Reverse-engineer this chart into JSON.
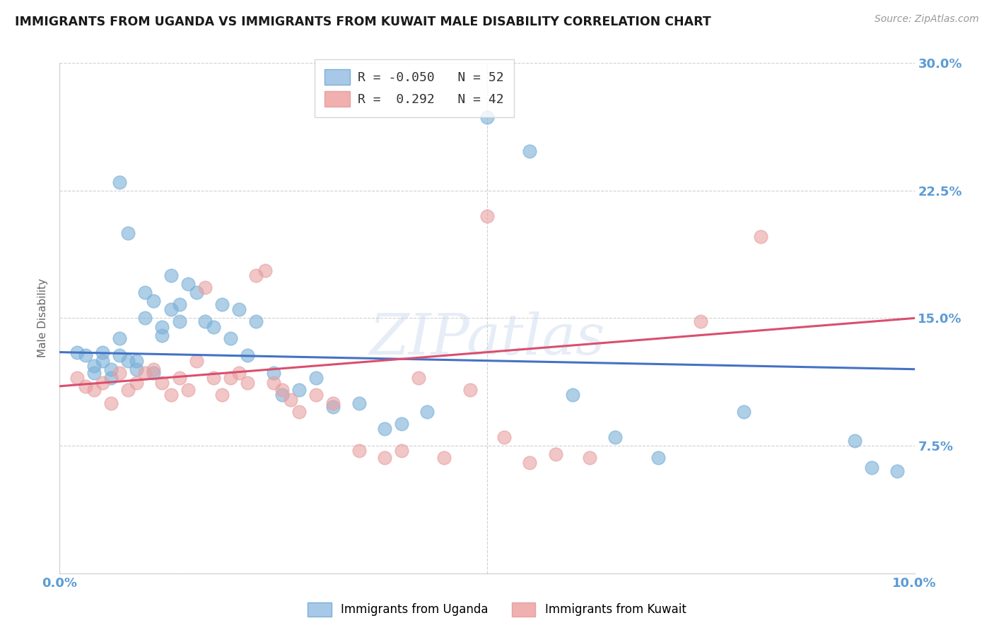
{
  "title": "IMMIGRANTS FROM UGANDA VS IMMIGRANTS FROM KUWAIT MALE DISABILITY CORRELATION CHART",
  "source": "Source: ZipAtlas.com",
  "ylabel_label": "Male Disability",
  "ylabel_ticks": [
    0.0,
    0.075,
    0.15,
    0.225,
    0.3
  ],
  "ylabel_tick_labels": [
    "",
    "7.5%",
    "15.0%",
    "22.5%",
    "30.0%"
  ],
  "xlim": [
    0.0,
    0.1
  ],
  "ylim": [
    0.0,
    0.3
  ],
  "series_uganda": {
    "color": "#7ab0d8",
    "x": [
      0.002,
      0.003,
      0.004,
      0.004,
      0.005,
      0.005,
      0.006,
      0.006,
      0.007,
      0.007,
      0.007,
      0.008,
      0.008,
      0.009,
      0.009,
      0.01,
      0.01,
      0.011,
      0.011,
      0.012,
      0.012,
      0.013,
      0.013,
      0.014,
      0.014,
      0.015,
      0.016,
      0.017,
      0.018,
      0.019,
      0.02,
      0.021,
      0.022,
      0.023,
      0.025,
      0.026,
      0.028,
      0.03,
      0.032,
      0.035,
      0.038,
      0.04,
      0.043,
      0.05,
      0.055,
      0.06,
      0.065,
      0.07,
      0.08,
      0.093,
      0.095,
      0.098
    ],
    "y": [
      0.13,
      0.128,
      0.122,
      0.118,
      0.125,
      0.13,
      0.12,
      0.115,
      0.138,
      0.128,
      0.23,
      0.125,
      0.2,
      0.125,
      0.12,
      0.15,
      0.165,
      0.16,
      0.118,
      0.14,
      0.145,
      0.155,
      0.175,
      0.158,
      0.148,
      0.17,
      0.165,
      0.148,
      0.145,
      0.158,
      0.138,
      0.155,
      0.128,
      0.148,
      0.118,
      0.105,
      0.108,
      0.115,
      0.098,
      0.1,
      0.085,
      0.088,
      0.095,
      0.268,
      0.248,
      0.105,
      0.08,
      0.068,
      0.095,
      0.078,
      0.062,
      0.06
    ]
  },
  "series_kuwait": {
    "color": "#e8a0a0",
    "x": [
      0.002,
      0.003,
      0.004,
      0.005,
      0.006,
      0.007,
      0.008,
      0.009,
      0.01,
      0.011,
      0.012,
      0.013,
      0.014,
      0.015,
      0.016,
      0.017,
      0.018,
      0.019,
      0.02,
      0.021,
      0.022,
      0.023,
      0.024,
      0.025,
      0.026,
      0.027,
      0.028,
      0.03,
      0.032,
      0.035,
      0.038,
      0.04,
      0.042,
      0.045,
      0.048,
      0.05,
      0.052,
      0.055,
      0.058,
      0.062,
      0.075,
      0.082
    ],
    "y": [
      0.115,
      0.11,
      0.108,
      0.112,
      0.1,
      0.118,
      0.108,
      0.112,
      0.118,
      0.12,
      0.112,
      0.105,
      0.115,
      0.108,
      0.125,
      0.168,
      0.115,
      0.105,
      0.115,
      0.118,
      0.112,
      0.175,
      0.178,
      0.112,
      0.108,
      0.102,
      0.095,
      0.105,
      0.1,
      0.072,
      0.068,
      0.072,
      0.115,
      0.068,
      0.108,
      0.21,
      0.08,
      0.065,
      0.07,
      0.068,
      0.148,
      0.198
    ]
  },
  "watermark": "ZIPatlas",
  "bg_color": "#ffffff",
  "grid_color": "#d0d0d0",
  "tick_label_color": "#5b9bd5",
  "uganda_line_color": "#4472c4",
  "kuwait_line_color": "#d94f6e"
}
